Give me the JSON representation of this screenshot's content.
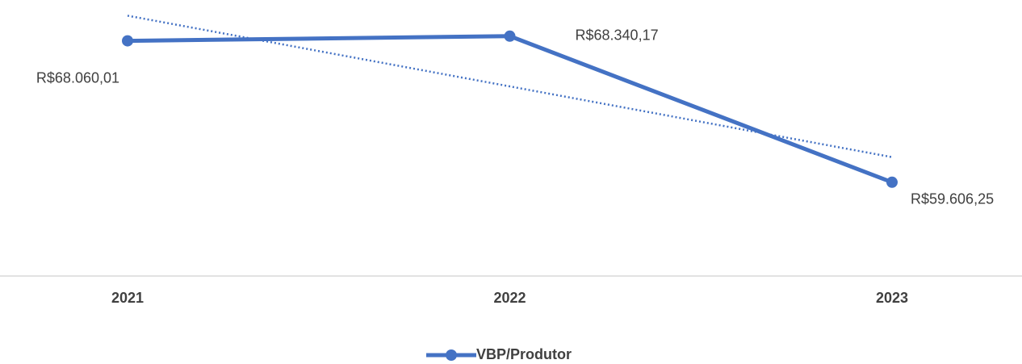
{
  "chart_data": {
    "type": "line",
    "categories": [
      "2021",
      "2022",
      "2023"
    ],
    "series": [
      {
        "name": "VBP/Produtor",
        "color": "#4472c4",
        "values": [
          68060.01,
          68340.17,
          59606.25
        ],
        "value_labels": [
          "R$68.060,01",
          "R$68.340,17",
          "R$59.606,25"
        ]
      }
    ],
    "ylim": [
      54000,
      70500
    ],
    "trendline": {
      "type": "linear",
      "style": "dotted"
    },
    "legend": "bottom"
  }
}
